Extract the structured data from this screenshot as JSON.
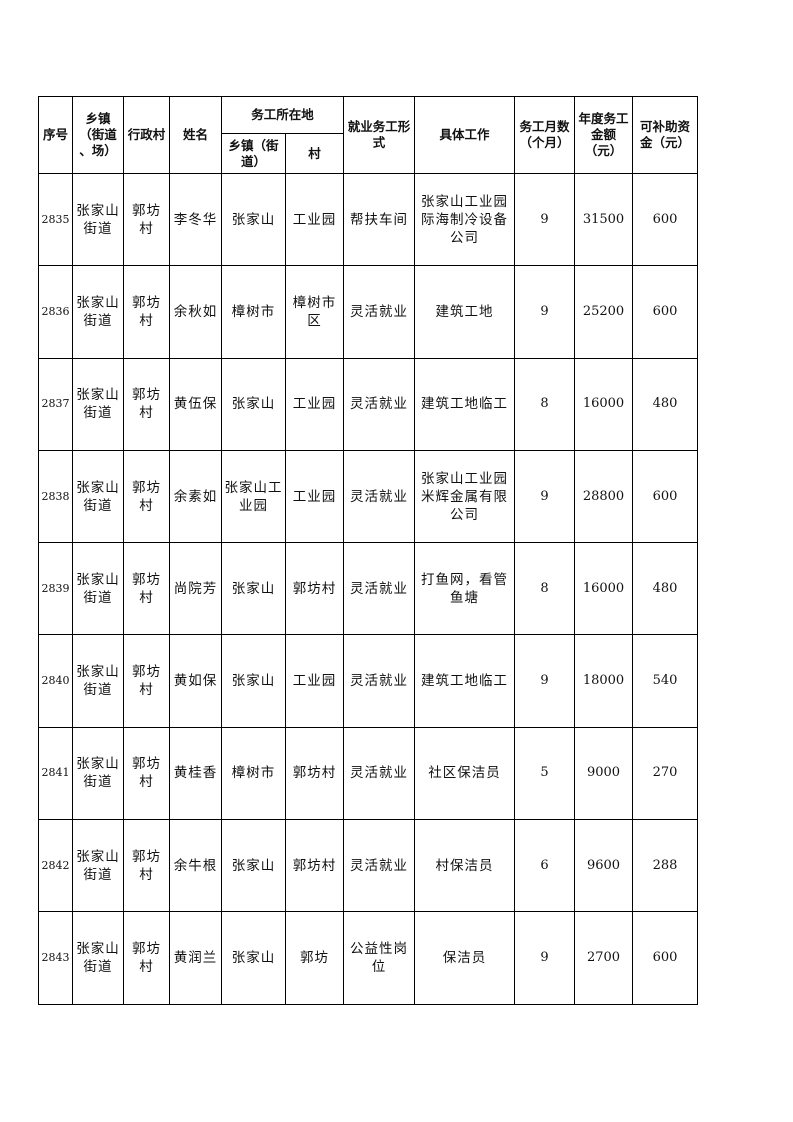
{
  "headers": {
    "seq": "序号",
    "town": "乡镇\n（街道\n、场）",
    "village": "行政村",
    "name": "姓名",
    "work_location": "务工所在地",
    "work_town": "乡镇（街\n道）",
    "work_village": "村",
    "employment_form": "就业务工形\n式",
    "job": "具体工作",
    "months": "务工月数\n（个月）",
    "annual_income": "年度务工\n金额\n（元）",
    "subsidy": "可补助资\n金（元）"
  },
  "rows": [
    {
      "seq": "2835",
      "town": "张家山\n街道",
      "village": "郭坊\n村",
      "name": "李冬华",
      "work_town": "张家山",
      "work_village": "工业园",
      "form": "帮扶车间",
      "job": "张家山工业园\n际海制冷设备\n公司",
      "months": "9",
      "income": "31500",
      "subsidy": "600"
    },
    {
      "seq": "2836",
      "town": "张家山\n街道",
      "village": "郭坊\n村",
      "name": "余秋如",
      "work_town": "樟树市",
      "work_village": "樟树市\n区",
      "form": "灵活就业",
      "job": "建筑工地",
      "months": "9",
      "income": "25200",
      "subsidy": "600"
    },
    {
      "seq": "2837",
      "town": "张家山\n街道",
      "village": "郭坊\n村",
      "name": "黄伍保",
      "work_town": "张家山",
      "work_village": "工业园",
      "form": "灵活就业",
      "job": "建筑工地临工",
      "months": "8",
      "income": "16000",
      "subsidy": "480"
    },
    {
      "seq": "2838",
      "town": "张家山\n街道",
      "village": "郭坊\n村",
      "name": "余素如",
      "work_town": "张家山工\n业园",
      "work_village": "工业园",
      "form": "灵活就业",
      "job": "张家山工业园\n米辉金属有限\n公司",
      "months": "9",
      "income": "28800",
      "subsidy": "600"
    },
    {
      "seq": "2839",
      "town": "张家山\n街道",
      "village": "郭坊\n村",
      "name": "尚院芳",
      "work_town": "张家山",
      "work_village": "郭坊村",
      "form": "灵活就业",
      "job": "打鱼网，看管\n鱼塘",
      "months": "8",
      "income": "16000",
      "subsidy": "480"
    },
    {
      "seq": "2840",
      "town": "张家山\n街道",
      "village": "郭坊\n村",
      "name": "黄如保",
      "work_town": "张家山",
      "work_village": "工业园",
      "form": "灵活就业",
      "job": "建筑工地临工",
      "months": "9",
      "income": "18000",
      "subsidy": "540"
    },
    {
      "seq": "2841",
      "town": "张家山\n街道",
      "village": "郭坊\n村",
      "name": "黄桂香",
      "work_town": "樟树市",
      "work_village": "郭坊村",
      "form": "灵活就业",
      "job": "社区保洁员",
      "months": "5",
      "income": "9000",
      "subsidy": "270"
    },
    {
      "seq": "2842",
      "town": "张家山\n街道",
      "village": "郭坊\n村",
      "name": "余牛根",
      "work_town": "张家山",
      "work_village": "郭坊村",
      "form": "灵活就业",
      "job": "村保洁员",
      "months": "6",
      "income": "9600",
      "subsidy": "288"
    },
    {
      "seq": "2843",
      "town": "张家山\n街道",
      "village": "郭坊\n村",
      "name": "黄润兰",
      "work_town": "张家山",
      "work_village": "郭坊",
      "form": "公益性岗\n位",
      "job": "保洁员",
      "months": "9",
      "income": "2700",
      "subsidy": "600"
    }
  ]
}
